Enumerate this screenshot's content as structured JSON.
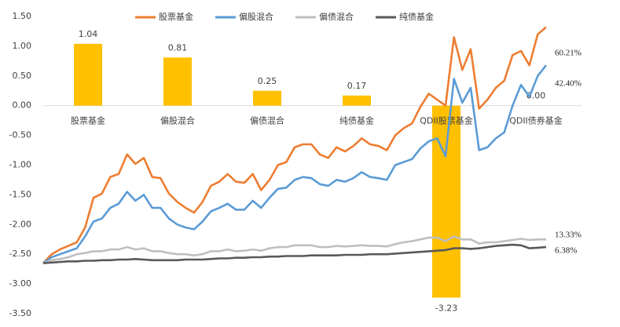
{
  "chart_data": [
    {
      "type": "bar",
      "categories": [
        "股票基金",
        "偏股混合",
        "偏债混合",
        "纯债基金",
        "QDII股票基金",
        "QDII债券基金"
      ],
      "values": [
        1.04,
        0.81,
        0.25,
        0.17,
        -3.23,
        0
      ],
      "value_labels": [
        "1.04",
        "0.81",
        "0.25",
        "0.17",
        "-3.23",
        "0.00"
      ],
      "color": "#ffc000",
      "ylim": [
        -3.5,
        1.5
      ],
      "yticks": [
        {
          "value": -3.5,
          "label": "-3.50"
        },
        {
          "value": -3,
          "label": "-3.00"
        },
        {
          "value": -2.5,
          "label": "-2.50"
        },
        {
          "value": -2,
          "label": "-2.00"
        },
        {
          "value": -1.5,
          "label": "-1.50"
        },
        {
          "value": -1,
          "label": "-1.00"
        },
        {
          "value": -0.5,
          "label": "-0.50"
        },
        {
          "value": 0,
          "label": "0.00"
        },
        {
          "value": 0.5,
          "label": "0.50"
        },
        {
          "value": 1,
          "label": "1.00"
        },
        {
          "value": 1.5,
          "label": "1.50"
        }
      ]
    },
    {
      "type": "line",
      "ylim": [
        -3.5,
        1.5
      ],
      "legend": "top",
      "series": [
        {
          "name": "股票基金",
          "color": "#ed7d31",
          "end_label": "60.21%",
          "values": [
            -2.65,
            -2.5,
            -2.42,
            -2.36,
            -2.3,
            -2.05,
            -1.55,
            -1.48,
            -1.2,
            -1.15,
            -0.82,
            -0.98,
            -0.88,
            -1.2,
            -1.22,
            -1.48,
            -1.62,
            -1.72,
            -1.8,
            -1.62,
            -1.35,
            -1.28,
            -1.15,
            -1.28,
            -1.3,
            -1.15,
            -1.42,
            -1.25,
            -1.0,
            -0.95,
            -0.7,
            -0.65,
            -0.65,
            -0.82,
            -0.88,
            -0.7,
            -0.77,
            -0.68,
            -0.55,
            -0.65,
            -0.68,
            -0.75,
            -0.5,
            -0.38,
            -0.3,
            -0.02,
            0.2,
            0.1,
            0.0,
            1.15,
            0.6,
            0.95,
            -0.05,
            0.1,
            0.3,
            0.42,
            0.85,
            0.92,
            0.68,
            1.2,
            1.32
          ]
        },
        {
          "name": "偏股混合",
          "color": "#5b9bd5",
          "end_label": "42.40%",
          "values": [
            -2.65,
            -2.55,
            -2.5,
            -2.45,
            -2.4,
            -2.2,
            -1.95,
            -1.9,
            -1.72,
            -1.65,
            -1.45,
            -1.6,
            -1.5,
            -1.72,
            -1.72,
            -1.9,
            -2.0,
            -2.05,
            -2.08,
            -1.95,
            -1.78,
            -1.72,
            -1.65,
            -1.75,
            -1.75,
            -1.6,
            -1.72,
            -1.55,
            -1.4,
            -1.38,
            -1.25,
            -1.2,
            -1.22,
            -1.32,
            -1.35,
            -1.25,
            -1.28,
            -1.22,
            -1.12,
            -1.2,
            -1.22,
            -1.25,
            -1.0,
            -0.95,
            -0.9,
            -0.72,
            -0.6,
            -0.55,
            -0.85,
            0.45,
            0.05,
            0.3,
            -0.75,
            -0.7,
            -0.55,
            -0.45,
            0.0,
            0.35,
            0.15,
            0.5,
            0.68
          ]
        },
        {
          "name": "偏债混合",
          "color": "#bfbfbf",
          "end_label": "13.33%",
          "values": [
            -2.65,
            -2.6,
            -2.58,
            -2.55,
            -2.5,
            -2.48,
            -2.45,
            -2.45,
            -2.42,
            -2.42,
            -2.38,
            -2.42,
            -2.4,
            -2.45,
            -2.45,
            -2.48,
            -2.5,
            -2.5,
            -2.52,
            -2.5,
            -2.45,
            -2.45,
            -2.42,
            -2.45,
            -2.44,
            -2.42,
            -2.44,
            -2.4,
            -2.38,
            -2.38,
            -2.35,
            -2.35,
            -2.35,
            -2.38,
            -2.38,
            -2.36,
            -2.37,
            -2.36,
            -2.35,
            -2.36,
            -2.36,
            -2.37,
            -2.33,
            -2.3,
            -2.28,
            -2.25,
            -2.22,
            -2.22,
            -2.28,
            -2.2,
            -2.25,
            -2.25,
            -2.32,
            -2.3,
            -2.3,
            -2.28,
            -2.26,
            -2.24,
            -2.26,
            -2.25,
            -2.25
          ]
        },
        {
          "name": "纯债基金",
          "color": "#595959",
          "end_label": "6.38%",
          "values": [
            -2.65,
            -2.64,
            -2.63,
            -2.62,
            -2.62,
            -2.61,
            -2.61,
            -2.6,
            -2.6,
            -2.59,
            -2.59,
            -2.58,
            -2.59,
            -2.6,
            -2.6,
            -2.6,
            -2.6,
            -2.59,
            -2.59,
            -2.59,
            -2.58,
            -2.57,
            -2.57,
            -2.56,
            -2.56,
            -2.55,
            -2.55,
            -2.54,
            -2.54,
            -2.53,
            -2.53,
            -2.53,
            -2.52,
            -2.52,
            -2.52,
            -2.52,
            -2.51,
            -2.51,
            -2.51,
            -2.5,
            -2.5,
            -2.5,
            -2.49,
            -2.48,
            -2.47,
            -2.46,
            -2.45,
            -2.44,
            -2.43,
            -2.4,
            -2.4,
            -2.41,
            -2.4,
            -2.38,
            -2.36,
            -2.35,
            -2.34,
            -2.35,
            -2.4,
            -2.39,
            -2.38
          ]
        }
      ]
    }
  ]
}
